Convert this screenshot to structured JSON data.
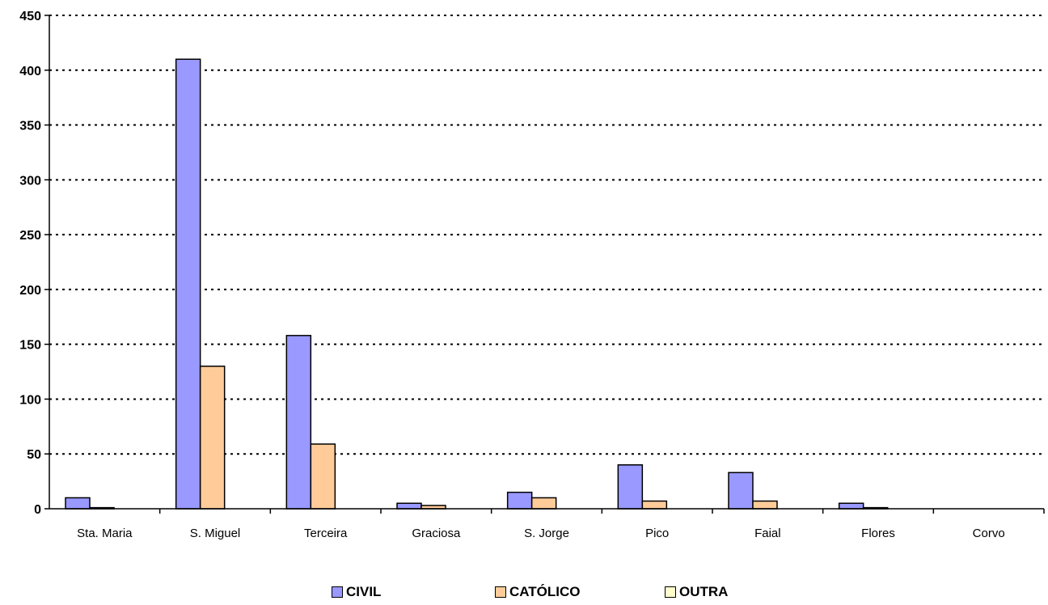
{
  "chart_data": {
    "type": "bar",
    "title": "",
    "xlabel": "",
    "ylabel": "",
    "ylim": [
      0,
      450
    ],
    "yticks": [
      0,
      50,
      100,
      150,
      200,
      250,
      300,
      350,
      400,
      450
    ],
    "grid": true,
    "legend_position": "bottom",
    "categories": [
      "Sta. Maria",
      "S. Miguel",
      "Terceira",
      "Graciosa",
      "S. Jorge",
      "Pico",
      "Faial",
      "Flores",
      "Corvo"
    ],
    "series": [
      {
        "name": "CIVIL",
        "color": "#9999FF",
        "values": [
          10,
          410,
          158,
          5,
          15,
          40,
          33,
          5,
          0
        ]
      },
      {
        "name": "CATÓLICO",
        "color": "#FFCC99",
        "values": [
          1,
          130,
          59,
          3,
          10,
          7,
          7,
          1,
          0
        ]
      },
      {
        "name": "OUTRA",
        "color": "#FFFFCC",
        "values": [
          0,
          0,
          0,
          0,
          0,
          0,
          0,
          0,
          0
        ]
      }
    ]
  }
}
